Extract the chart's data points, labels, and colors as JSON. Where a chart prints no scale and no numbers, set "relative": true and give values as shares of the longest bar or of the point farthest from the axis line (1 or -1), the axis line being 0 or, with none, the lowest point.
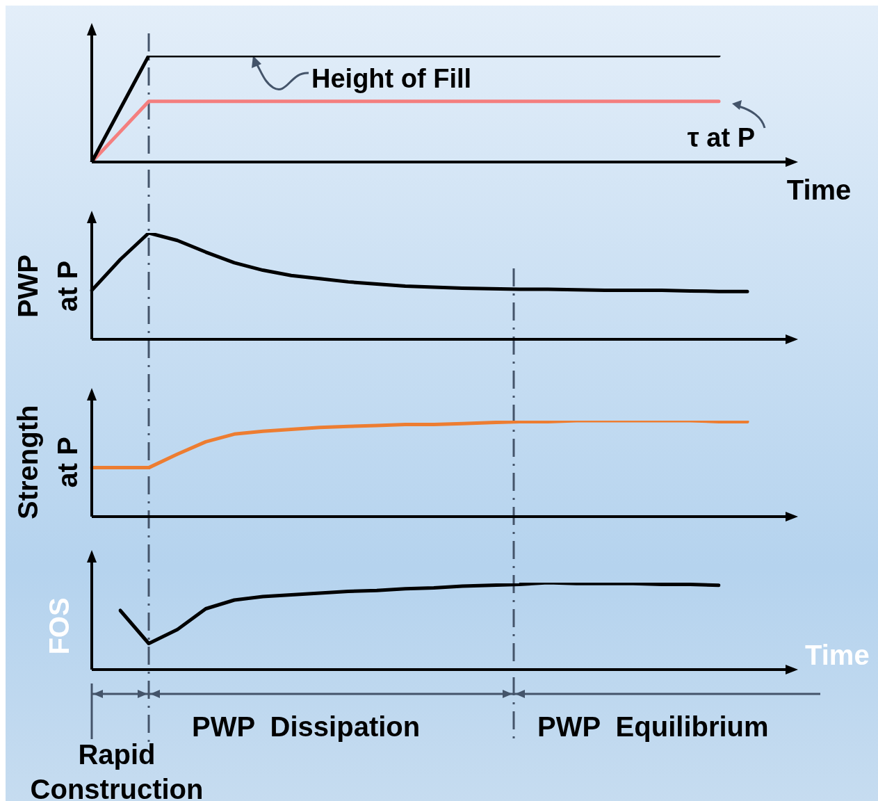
{
  "chart_data": [
    {
      "type": "line",
      "relative": true,
      "marker": "none",
      "xlabel": "Time",
      "categories": [
        null,
        null,
        null,
        null,
        null,
        null,
        null,
        null,
        null,
        null,
        null,
        null,
        null,
        null,
        null,
        null,
        null,
        null,
        null,
        null,
        null,
        null,
        null,
        null,
        null
      ],
      "series": [
        {
          "name": "Height of Fill",
          "color": "#000000",
          "values": [
            0,
            0.5,
            1,
            1,
            1,
            1,
            1,
            1,
            1,
            1,
            1,
            1,
            1,
            1,
            1,
            1,
            1,
            1,
            1,
            1,
            1,
            1,
            1,
            null,
            null
          ]
        },
        {
          "name": "τ at P",
          "color": "#f47f7f",
          "values": [
            0,
            0.285,
            0.57,
            0.57,
            0.57,
            0.57,
            0.57,
            0.57,
            0.57,
            0.57,
            0.57,
            0.57,
            0.57,
            0.57,
            0.57,
            0.57,
            0.57,
            0.57,
            0.57,
            0.57,
            0.57,
            0.57,
            0.57,
            null,
            null
          ]
        }
      ]
    },
    {
      "type": "line",
      "relative": true,
      "marker": "none",
      "ylabel": "PWP at P",
      "categories": [
        null,
        null,
        null,
        null,
        null,
        null,
        null,
        null,
        null,
        null,
        null,
        null,
        null,
        null,
        null,
        null,
        null,
        null,
        null,
        null,
        null,
        null,
        null,
        null,
        null
      ],
      "series": [
        {
          "color": "#000000",
          "values": [
            0.46,
            0.75,
            1,
            0.93,
            0.82,
            0.72,
            0.65,
            0.6,
            0.57,
            0.54,
            0.52,
            0.5,
            0.49,
            0.48,
            0.475,
            0.47,
            0.47,
            0.465,
            0.46,
            0.46,
            0.46,
            0.455,
            0.45,
            0.45,
            null
          ]
        }
      ]
    },
    {
      "type": "line",
      "relative": true,
      "marker": "none",
      "ylabel": "Strength at P",
      "categories": [
        null,
        null,
        null,
        null,
        null,
        null,
        null,
        null,
        null,
        null,
        null,
        null,
        null,
        null,
        null,
        null,
        null,
        null,
        null,
        null,
        null,
        null,
        null,
        null,
        null
      ],
      "series": [
        {
          "color": "#ed7d31",
          "values": [
            0.51,
            0.51,
            0.51,
            0.65,
            0.78,
            0.86,
            0.89,
            0.91,
            0.93,
            0.94,
            0.95,
            0.96,
            0.96,
            0.97,
            0.98,
            0.99,
            0.99,
            1,
            1,
            1,
            1,
            1,
            0.99,
            0.99,
            null
          ]
        }
      ]
    },
    {
      "type": "line",
      "relative": true,
      "marker": "none",
      "ylabel": "FOS",
      "xlabel": "Time",
      "categories": [
        null,
        null,
        null,
        null,
        null,
        null,
        null,
        null,
        null,
        null,
        null,
        null,
        null,
        null,
        null,
        null,
        null,
        null,
        null,
        null,
        null,
        null
      ],
      "series": [
        {
          "color": "#000000",
          "values": [
            0.68,
            0.3,
            0.46,
            0.7,
            0.8,
            0.84,
            0.86,
            0.88,
            0.9,
            0.91,
            0.93,
            0.94,
            0.96,
            0.97,
            0.98,
            1,
            0.99,
            0.99,
            0.99,
            0.98,
            0.98,
            0.97
          ]
        }
      ],
      "annotations": [
        "Rapid Construction",
        "PWP  Dissipation",
        "PWP  Equilibrium"
      ]
    }
  ]
}
